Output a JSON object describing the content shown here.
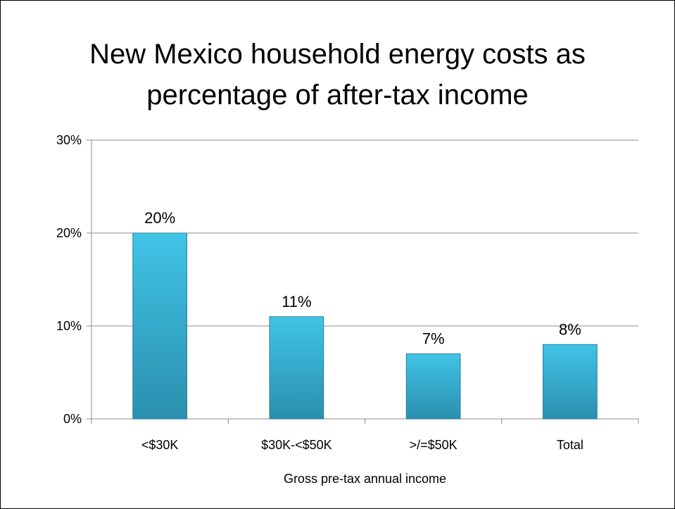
{
  "chart_data": {
    "type": "bar",
    "title_line1": "New Mexico household energy costs as",
    "title_line2": "percentage of after-tax income",
    "categories": [
      "<$30K",
      "$30K-<$50K",
      ">/=$50K",
      "Total"
    ],
    "values": [
      20,
      11,
      7,
      8
    ],
    "data_labels": [
      "20%",
      "11%",
      "7%",
      "8%"
    ],
    "xlabel": "Gross pre-tax annual income",
    "ylabel": "",
    "ylim": [
      0,
      30
    ],
    "yticks": [
      0,
      10,
      20,
      30
    ],
    "ytick_labels": [
      "0%",
      "10%",
      "20%",
      "30%"
    ],
    "grid": true,
    "bar_color": "#35b5d6"
  }
}
